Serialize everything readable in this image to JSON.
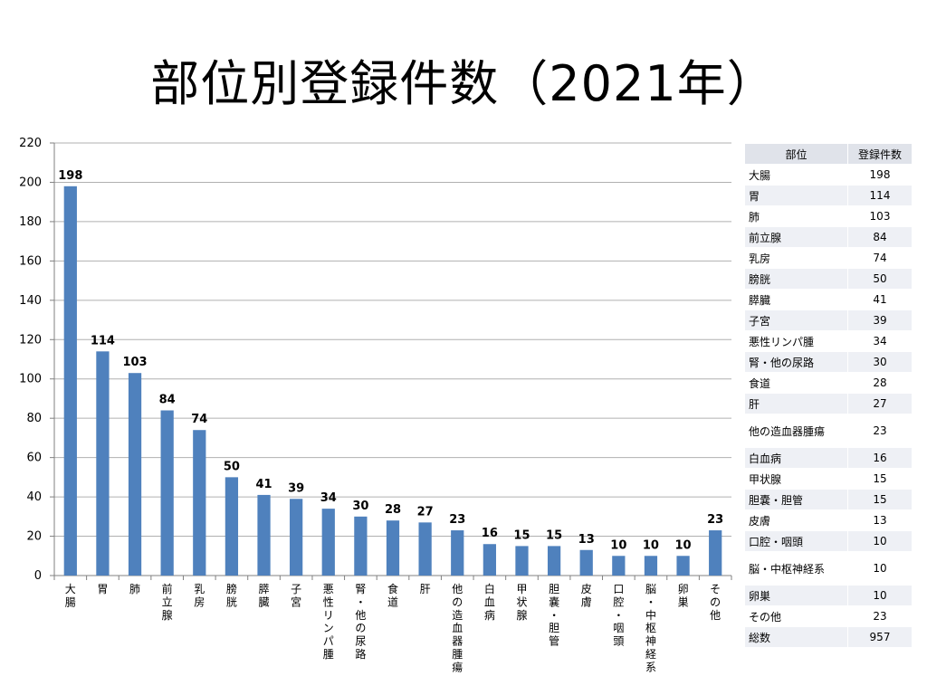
{
  "title": "部位別登録件数（2021年）",
  "colors": {
    "bar": "#4f81bd",
    "grid": "#b0b0b0",
    "axis": "#808080"
  },
  "chart_data": {
    "type": "bar",
    "categories": [
      "大腸",
      "胃",
      "肺",
      "前立腺",
      "乳房",
      "膀胱",
      "膵臓",
      "子宮",
      "悪性リンパ腫",
      "腎・他の尿路",
      "食道",
      "肝",
      "他の造血器腫瘍",
      "白血病",
      "甲状腺",
      "胆嚢・胆管",
      "皮膚",
      "口腔・咽頭",
      "脳・中枢神経系",
      "卵巣",
      "その他"
    ],
    "values": [
      198,
      114,
      103,
      84,
      74,
      50,
      41,
      39,
      34,
      30,
      28,
      27,
      23,
      16,
      15,
      15,
      13,
      10,
      10,
      10,
      23
    ],
    "ylim": [
      0,
      220
    ],
    "yticks": [
      0,
      20,
      40,
      60,
      80,
      100,
      120,
      140,
      160,
      180,
      200,
      220
    ],
    "grid": true,
    "legend": "none"
  },
  "table": {
    "headers": [
      "部位",
      "登録件数"
    ],
    "rows": [
      {
        "name": "大腸",
        "count": "198"
      },
      {
        "name": "胃",
        "count": "114"
      },
      {
        "name": "肺",
        "count": "103"
      },
      {
        "name": "前立腺",
        "count": "84"
      },
      {
        "name": "乳房",
        "count": "74"
      },
      {
        "name": "膀胱",
        "count": "50"
      },
      {
        "name": "膵臓",
        "count": "41"
      },
      {
        "name": "子宮",
        "count": "39"
      },
      {
        "name": "悪性リンパ腫",
        "count": "34"
      },
      {
        "name": "腎・他の尿路",
        "count": "30"
      },
      {
        "name": "食道",
        "count": "28"
      },
      {
        "name": "肝",
        "count": "27"
      },
      {
        "name": "他の造血器腫瘍",
        "count": "23"
      },
      {
        "name": "白血病",
        "count": "16"
      },
      {
        "name": "甲状腺",
        "count": "15"
      },
      {
        "name": "胆嚢・胆管",
        "count": "15"
      },
      {
        "name": "皮膚",
        "count": "13"
      },
      {
        "name": "口腔・咽頭",
        "count": "10"
      },
      {
        "name": "脳・中枢神経系",
        "count": "10"
      },
      {
        "name": "卵巣",
        "count": "10"
      },
      {
        "name": "その他",
        "count": "23"
      },
      {
        "name": "総数",
        "count": "957"
      }
    ]
  }
}
